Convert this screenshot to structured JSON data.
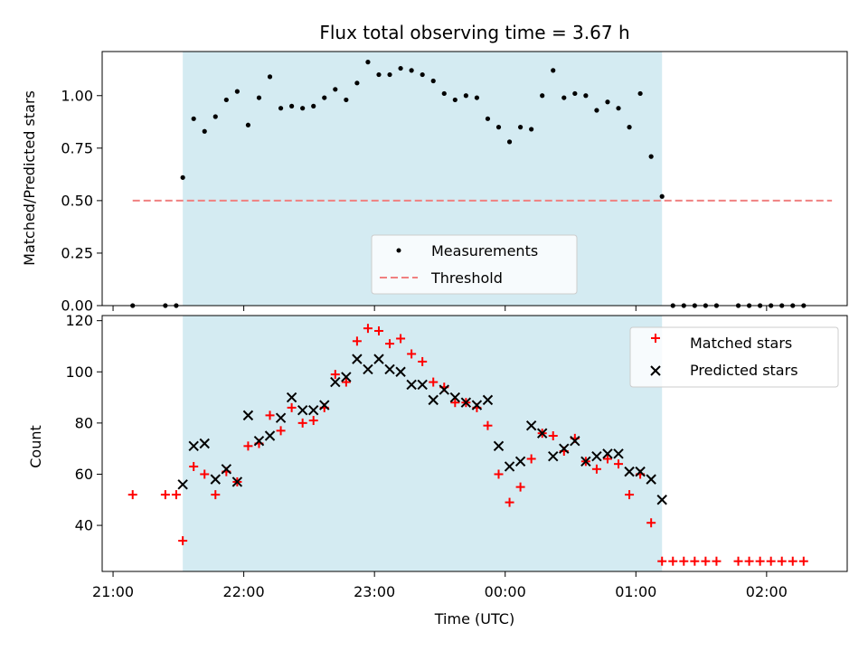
{
  "chart_data": [
    {
      "type": "scatter",
      "title": "Flux total observing time = 3.67 h",
      "ylabel": "Matched/Predicted stars",
      "ylim": [
        0,
        1.21
      ],
      "yticks": [
        "0.00",
        "0.25",
        "0.50",
        "0.75",
        "1.00"
      ],
      "legend": {
        "position": "bottom-center",
        "entries": [
          "Measurements",
          "Threshold"
        ]
      },
      "colors": {
        "points": "#000000",
        "threshold": "#f08080",
        "shade": "#d4ebf2"
      },
      "shaded_span": [
        "21:32",
        "01:12"
      ],
      "threshold": {
        "name": "Threshold",
        "y": 0.5,
        "x": [
          "21:09",
          "02:30"
        ]
      },
      "series": [
        {
          "name": "Measurements",
          "x": [
            "21:09",
            "21:24",
            "21:29",
            "21:32",
            "21:37",
            "21:42",
            "21:47",
            "21:52",
            "21:57",
            "22:02",
            "22:07",
            "22:12",
            "22:17",
            "22:22",
            "22:27",
            "22:32",
            "22:37",
            "22:42",
            "22:47",
            "22:52",
            "22:57",
            "23:02",
            "23:07",
            "23:12",
            "23:17",
            "23:22",
            "23:27",
            "23:32",
            "23:37",
            "23:42",
            "23:47",
            "23:52",
            "23:57",
            "00:02",
            "00:07",
            "00:12",
            "00:17",
            "00:22",
            "00:27",
            "00:32",
            "00:37",
            "00:42",
            "00:47",
            "00:52",
            "00:57",
            "01:02",
            "01:07",
            "01:12",
            "01:17",
            "01:22",
            "01:27",
            "01:32",
            "01:37",
            "01:47",
            "01:52",
            "01:57",
            "02:02",
            "02:07",
            "02:12",
            "02:17"
          ],
          "y": [
            0.0,
            0.0,
            0.0,
            0.61,
            0.89,
            0.83,
            0.9,
            0.98,
            1.02,
            0.86,
            0.99,
            1.09,
            0.94,
            0.95,
            0.94,
            0.95,
            0.99,
            1.03,
            0.98,
            1.06,
            1.16,
            1.1,
            1.1,
            1.13,
            1.12,
            1.1,
            1.07,
            1.01,
            0.98,
            1.0,
            0.99,
            0.89,
            0.85,
            0.78,
            0.85,
            0.84,
            1.0,
            1.12,
            0.99,
            1.01,
            1.0,
            0.93,
            0.97,
            0.94,
            0.85,
            1.01,
            0.71,
            0.52,
            0.0,
            0.0,
            0.0,
            0.0,
            0.0,
            0.0,
            0.0,
            0.0,
            0.0,
            0.0,
            0.0,
            0.0
          ]
        }
      ]
    },
    {
      "type": "scatter",
      "xlabel": "Time (UTC)",
      "ylabel": "Count",
      "ylim": [
        22,
        122
      ],
      "yticks": [
        "40",
        "60",
        "80",
        "100",
        "120"
      ],
      "xlim": [
        "20:55",
        "02:37"
      ],
      "xticks": [
        "21:00",
        "22:00",
        "23:00",
        "00:00",
        "01:00",
        "02:00"
      ],
      "legend": {
        "position": "top-right",
        "entries": [
          "Matched stars",
          "Predicted stars"
        ]
      },
      "colors": {
        "matched": "#ff0000",
        "predicted": "#000000",
        "shade": "#d4ebf2"
      },
      "shaded_span": [
        "21:32",
        "01:12"
      ],
      "series": [
        {
          "name": "Matched stars",
          "x": [
            "21:09",
            "21:24",
            "21:29",
            "21:32",
            "21:37",
            "21:42",
            "21:47",
            "21:52",
            "21:57",
            "22:02",
            "22:07",
            "22:12",
            "22:17",
            "22:22",
            "22:27",
            "22:32",
            "22:37",
            "22:42",
            "22:47",
            "22:52",
            "22:57",
            "23:02",
            "23:07",
            "23:12",
            "23:17",
            "23:22",
            "23:27",
            "23:32",
            "23:37",
            "23:42",
            "23:47",
            "23:52",
            "23:57",
            "00:02",
            "00:07",
            "00:12",
            "00:17",
            "00:22",
            "00:27",
            "00:32",
            "00:37",
            "00:42",
            "00:47",
            "00:52",
            "00:57",
            "01:02",
            "01:07",
            "01:12",
            "01:17",
            "01:22",
            "01:27",
            "01:32",
            "01:37",
            "01:47",
            "01:52",
            "01:57",
            "02:02",
            "02:07",
            "02:12",
            "02:17"
          ],
          "y": [
            52,
            52,
            52,
            34,
            63,
            60,
            52,
            61,
            57,
            71,
            72,
            83,
            77,
            86,
            80,
            81,
            86,
            99,
            96,
            112,
            117,
            116,
            111,
            113,
            107,
            104,
            96,
            94,
            88,
            88,
            86,
            79,
            60,
            49,
            55,
            66,
            76,
            75,
            69,
            74,
            65,
            62,
            66,
            64,
            52,
            60,
            41,
            26,
            26,
            26,
            26,
            26,
            26,
            26,
            26,
            26,
            26,
            26,
            26,
            26
          ]
        },
        {
          "name": "Predicted stars",
          "x": [
            "21:32",
            "21:37",
            "21:42",
            "21:47",
            "21:52",
            "21:57",
            "22:02",
            "22:07",
            "22:12",
            "22:17",
            "22:22",
            "22:27",
            "22:32",
            "22:37",
            "22:42",
            "22:47",
            "22:52",
            "22:57",
            "23:02",
            "23:07",
            "23:12",
            "23:17",
            "23:22",
            "23:27",
            "23:32",
            "23:37",
            "23:42",
            "23:47",
            "23:52",
            "23:57",
            "00:02",
            "00:07",
            "00:12",
            "00:17",
            "00:22",
            "00:27",
            "00:32",
            "00:37",
            "00:42",
            "00:47",
            "00:52",
            "00:57",
            "01:02",
            "01:07",
            "01:12"
          ],
          "y": [
            56,
            71,
            72,
            58,
            62,
            57,
            83,
            73,
            75,
            82,
            90,
            85,
            85,
            87,
            96,
            98,
            105,
            101,
            105,
            101,
            100,
            95,
            95,
            89,
            93,
            90,
            88,
            87,
            89,
            71,
            63,
            65,
            79,
            76,
            67,
            70,
            73,
            65,
            67,
            68,
            68,
            61,
            61,
            58,
            50
          ]
        }
      ]
    }
  ]
}
